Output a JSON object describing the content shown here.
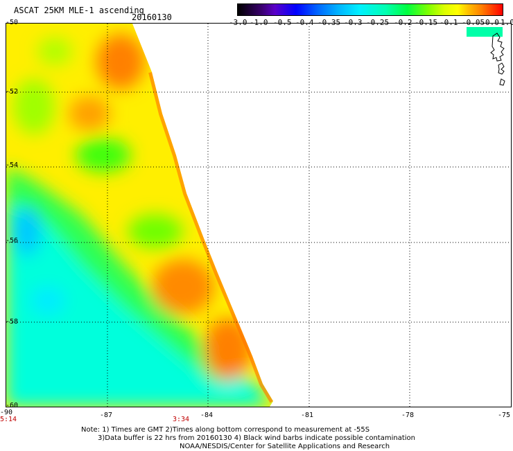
{
  "header": {
    "title": "ASCAT 25KM MLE-1 ascending",
    "date": "20160130"
  },
  "colorbar": {
    "labels": [
      "-3.0",
      "-1.0",
      "-0.5",
      "-0.4",
      "-0.35",
      "-0.3",
      "-0.25",
      "-0.2",
      "-0.15",
      "-0.1",
      "-0.05",
      "0.0",
      "1.0"
    ]
  },
  "axes": {
    "lat_labels": [
      "-50",
      "-52",
      "-54",
      "-56",
      "-58",
      "-60"
    ],
    "lon_labels": [
      "-90",
      "-87",
      "-84",
      "-81",
      "-78",
      "-75"
    ],
    "time_labels": [
      "5:14",
      "3:34"
    ]
  },
  "notes": {
    "line1": "Note: 1) Times are GMT 2)Times along bottom correspond to measurement at -55S",
    "line2": "3)Data buffer is 22 hrs from 20160130 4) Black wind barbs indicate possible contamination",
    "line3": "NOAA/NESDIS/Center for Satellite Applications and Research"
  },
  "colors": {
    "cyan": "#00ffe0",
    "green": "#00ff00",
    "yellow": "#ffff00",
    "orange": "#ff8000",
    "time_red": "#c00000"
  }
}
